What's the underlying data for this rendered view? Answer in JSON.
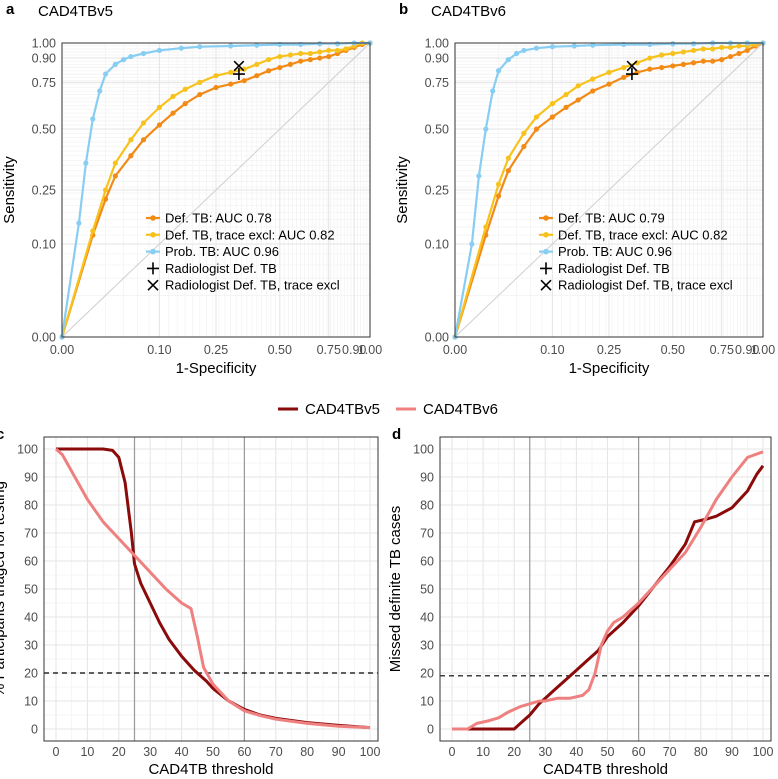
{
  "figure": {
    "panel_labels": [
      "a",
      "b",
      "c",
      "d"
    ],
    "shared_legend": [
      {
        "name": "CAD4TBv5",
        "color": "#8b0a0a"
      },
      {
        "name": "CAD4TBv6",
        "color": "#ef8080"
      }
    ]
  },
  "colors": {
    "def_tb": "#f28a16",
    "def_tb_trace": "#f7c21d",
    "prob_tb": "#88cdf2",
    "v5": "#8b0a0a",
    "v6": "#ef8080",
    "grid_major": "#e6e6e6",
    "grid_minor": "#f3f3f3",
    "vline": "#999999"
  },
  "chart_data": [
    {
      "panel": "a",
      "type": "line",
      "title": "CAD4TBv5",
      "xlabel": "1-Specificity",
      "ylabel": "Sensitivity",
      "xticks": [
        0.0,
        0.1,
        0.25,
        0.5,
        0.75,
        0.9,
        1.0
      ],
      "xtick_labels": [
        "0.00",
        "0.10",
        "0.25",
        "0.50",
        "0.75",
        "0.90",
        "1.00"
      ],
      "yticks": [
        0.0,
        0.1,
        0.25,
        0.5,
        0.75,
        0.9,
        1.0
      ],
      "ytick_labels": [
        "0.00",
        "0.10",
        "0.25",
        "0.50",
        "0.75",
        "0.90",
        "1.00"
      ],
      "axis_transform": "sqrt",
      "legend_position": "bottom-right",
      "series": [
        {
          "name": "Def. TB: AUC 0.78",
          "color_key": "def_tb",
          "x": [
            0,
            0.01,
            0.02,
            0.03,
            0.05,
            0.07,
            0.1,
            0.13,
            0.16,
            0.2,
            0.25,
            0.3,
            0.35,
            0.4,
            0.45,
            0.5,
            0.55,
            0.6,
            0.65,
            0.7,
            0.75,
            0.8,
            0.85,
            0.9,
            0.95,
            1.0
          ],
          "y": [
            0,
            0.12,
            0.22,
            0.3,
            0.38,
            0.45,
            0.52,
            0.58,
            0.63,
            0.68,
            0.72,
            0.74,
            0.76,
            0.79,
            0.82,
            0.84,
            0.86,
            0.88,
            0.89,
            0.9,
            0.91,
            0.93,
            0.95,
            0.97,
            0.99,
            1.0
          ]
        },
        {
          "name": "Def. TB, trace excl: AUC 0.82",
          "color_key": "def_tb_trace",
          "x": [
            0,
            0.01,
            0.02,
            0.03,
            0.05,
            0.07,
            0.1,
            0.13,
            0.16,
            0.2,
            0.25,
            0.3,
            0.35,
            0.4,
            0.45,
            0.5,
            0.55,
            0.6,
            0.65,
            0.7,
            0.75,
            0.8,
            0.85,
            0.9,
            0.95,
            1.0
          ],
          "y": [
            0,
            0.13,
            0.25,
            0.35,
            0.45,
            0.53,
            0.61,
            0.67,
            0.71,
            0.75,
            0.79,
            0.81,
            0.83,
            0.86,
            0.89,
            0.91,
            0.92,
            0.93,
            0.93,
            0.94,
            0.95,
            0.95,
            0.96,
            0.98,
            1.0,
            1.0
          ]
        },
        {
          "name": "Prob. TB: AUC 0.96",
          "color_key": "prob_tb",
          "x": [
            0,
            0.003,
            0.006,
            0.01,
            0.015,
            0.02,
            0.03,
            0.04,
            0.05,
            0.07,
            0.1,
            0.15,
            0.2,
            0.3,
            0.4,
            0.5,
            0.6,
            0.7,
            0.8,
            0.9,
            1.0
          ],
          "y": [
            0,
            0.15,
            0.35,
            0.55,
            0.7,
            0.8,
            0.86,
            0.89,
            0.91,
            0.93,
            0.95,
            0.965,
            0.975,
            0.98,
            0.985,
            0.99,
            0.99,
            0.995,
            0.995,
            1.0,
            1.0
          ]
        }
      ],
      "points": [
        {
          "name": "Radiologist Def. TB",
          "marker": "plus",
          "x": 0.33,
          "y": 0.8
        },
        {
          "name": "Radiologist Def. TB, trace excl",
          "marker": "cross",
          "x": 0.33,
          "y": 0.85
        }
      ]
    },
    {
      "panel": "b",
      "type": "line",
      "title": "CAD4TBv6",
      "xlabel": "1-Specificity",
      "ylabel": "Sensitivity",
      "xticks": [
        0.0,
        0.1,
        0.25,
        0.5,
        0.75,
        0.9,
        1.0
      ],
      "xtick_labels": [
        "0.00",
        "0.10",
        "0.25",
        "0.50",
        "0.75",
        "0.90",
        "1.00"
      ],
      "yticks": [
        0.0,
        0.1,
        0.25,
        0.5,
        0.75,
        0.9,
        1.0
      ],
      "ytick_labels": [
        "0.00",
        "0.10",
        "0.25",
        "0.50",
        "0.75",
        "0.90",
        "1.00"
      ],
      "axis_transform": "sqrt",
      "legend_position": "bottom-right",
      "series": [
        {
          "name": "Def. TB: AUC 0.79",
          "color_key": "def_tb",
          "x": [
            0,
            0.01,
            0.02,
            0.03,
            0.05,
            0.07,
            0.1,
            0.13,
            0.16,
            0.2,
            0.25,
            0.3,
            0.35,
            0.4,
            0.45,
            0.5,
            0.55,
            0.6,
            0.65,
            0.7,
            0.75,
            0.8,
            0.85,
            0.9,
            0.95,
            1.0
          ],
          "y": [
            0,
            0.12,
            0.23,
            0.32,
            0.42,
            0.5,
            0.56,
            0.61,
            0.65,
            0.7,
            0.74,
            0.78,
            0.81,
            0.83,
            0.84,
            0.85,
            0.86,
            0.87,
            0.88,
            0.88,
            0.89,
            0.91,
            0.93,
            0.95,
            0.98,
            1.0
          ]
        },
        {
          "name": "Def. TB, trace excl: AUC 0.82",
          "color_key": "def_tb_trace",
          "x": [
            0,
            0.01,
            0.02,
            0.03,
            0.05,
            0.07,
            0.1,
            0.13,
            0.16,
            0.2,
            0.25,
            0.3,
            0.35,
            0.4,
            0.45,
            0.5,
            0.55,
            0.6,
            0.65,
            0.7,
            0.75,
            0.8,
            0.85,
            0.9,
            0.95,
            1.0
          ],
          "y": [
            0,
            0.14,
            0.27,
            0.37,
            0.48,
            0.56,
            0.63,
            0.68,
            0.73,
            0.77,
            0.81,
            0.84,
            0.87,
            0.9,
            0.92,
            0.93,
            0.94,
            0.95,
            0.96,
            0.96,
            0.97,
            0.97,
            0.98,
            0.98,
            0.99,
            1.0
          ]
        },
        {
          "name": "Prob. TB: AUC 0.96",
          "color_key": "prob_tb",
          "x": [
            0,
            0.003,
            0.006,
            0.01,
            0.015,
            0.02,
            0.03,
            0.04,
            0.05,
            0.07,
            0.1,
            0.15,
            0.2,
            0.3,
            0.4,
            0.5,
            0.6,
            0.7,
            0.8,
            0.9,
            1.0
          ],
          "y": [
            0,
            0.1,
            0.3,
            0.5,
            0.7,
            0.82,
            0.89,
            0.93,
            0.95,
            0.965,
            0.975,
            0.98,
            0.985,
            0.99,
            0.99,
            0.995,
            0.995,
            1.0,
            1.0,
            1.0,
            1.0
          ]
        }
      ],
      "points": [
        {
          "name": "Radiologist Def. TB",
          "marker": "plus",
          "x": 0.33,
          "y": 0.8
        },
        {
          "name": "Radiologist Def. TB, trace excl",
          "marker": "cross",
          "x": 0.33,
          "y": 0.85
        }
      ]
    },
    {
      "panel": "c",
      "type": "line",
      "xlabel": "CAD4TB threshold",
      "ylabel": "% Participants triaged for testing",
      "xlim": [
        0,
        100
      ],
      "ylim": [
        0,
        100
      ],
      "xticks": [
        0,
        10,
        20,
        30,
        40,
        50,
        60,
        70,
        80,
        90,
        100
      ],
      "xtick_labels": [
        "0",
        "10",
        "20",
        "30",
        "40",
        "50",
        "60",
        "70",
        "80",
        "90",
        "100"
      ],
      "yticks": [
        0,
        10,
        20,
        30,
        40,
        50,
        60,
        70,
        80,
        90,
        100
      ],
      "ytick_labels": [
        "0",
        "10",
        "20",
        "30",
        "40",
        "50",
        "60",
        "70",
        "80",
        "90",
        "100"
      ],
      "vlines": [
        25,
        60
      ],
      "hline": 20,
      "series": [
        {
          "name": "CAD4TBv5",
          "color_key": "v5",
          "x": [
            0,
            5,
            10,
            15,
            18,
            20,
            22,
            24,
            25,
            27,
            30,
            33,
            36,
            40,
            44,
            48,
            50,
            55,
            60,
            65,
            70,
            80,
            90,
            100
          ],
          "y": [
            100,
            100,
            100,
            100,
            99.5,
            97,
            88,
            70,
            59,
            52,
            45,
            38,
            32,
            26,
            21,
            17,
            14.5,
            10,
            7,
            5,
            3.8,
            2.3,
            1.3,
            0.5
          ]
        },
        {
          "name": "CAD4TBv6",
          "color_key": "v6",
          "x": [
            0,
            2,
            5,
            10,
            15,
            20,
            25,
            30,
            35,
            40,
            43,
            45,
            47,
            50,
            55,
            60,
            65,
            70,
            80,
            90,
            100
          ],
          "y": [
            100,
            98,
            92,
            82,
            74,
            68,
            62,
            56,
            50,
            45,
            43,
            33,
            22,
            16,
            10,
            6.5,
            4.8,
            3.5,
            2,
            1,
            0.5
          ]
        }
      ]
    },
    {
      "panel": "d",
      "type": "line",
      "xlabel": "CAD4TB threshold",
      "ylabel": "Missed definite TB cases",
      "xlim": [
        0,
        100
      ],
      "ylim": [
        0,
        100
      ],
      "xticks": [
        0,
        10,
        20,
        30,
        40,
        50,
        60,
        70,
        80,
        90,
        100
      ],
      "xtick_labels": [
        "0",
        "10",
        "20",
        "30",
        "40",
        "50",
        "60",
        "70",
        "80",
        "90",
        "100"
      ],
      "yticks": [
        0,
        10,
        20,
        30,
        40,
        50,
        60,
        70,
        80,
        90,
        100
      ],
      "ytick_labels": [
        "0",
        "10",
        "20",
        "30",
        "40",
        "50",
        "60",
        "70",
        "80",
        "90",
        "100"
      ],
      "vlines": [
        25,
        60
      ],
      "hline": 19,
      "series": [
        {
          "name": "CAD4TBv5",
          "color_key": "v5",
          "x": [
            0,
            10,
            20,
            22,
            25,
            28,
            30,
            33,
            36,
            40,
            44,
            47,
            50,
            55,
            60,
            65,
            70,
            75,
            78,
            82,
            85,
            90,
            95,
            98,
            100
          ],
          "y": [
            0,
            0,
            0,
            2,
            5,
            9,
            11,
            14,
            17,
            21,
            25,
            28,
            33,
            38,
            44,
            51,
            58,
            66,
            74,
            75,
            76,
            79,
            85,
            91,
            94
          ]
        },
        {
          "name": "CAD4TBv6",
          "color_key": "v6",
          "x": [
            0,
            5,
            8,
            12,
            15,
            18,
            20,
            22,
            25,
            28,
            30,
            34,
            38,
            42,
            44,
            46,
            48,
            50,
            52,
            55,
            60,
            65,
            70,
            75,
            80,
            85,
            90,
            95,
            100
          ],
          "y": [
            0,
            0,
            2,
            3,
            4,
            6,
            7,
            8,
            9,
            10,
            10,
            11,
            11,
            12,
            14,
            20,
            30,
            35,
            38,
            40,
            45,
            51,
            57,
            63,
            72,
            82,
            90,
            97,
            99
          ]
        }
      ]
    }
  ]
}
